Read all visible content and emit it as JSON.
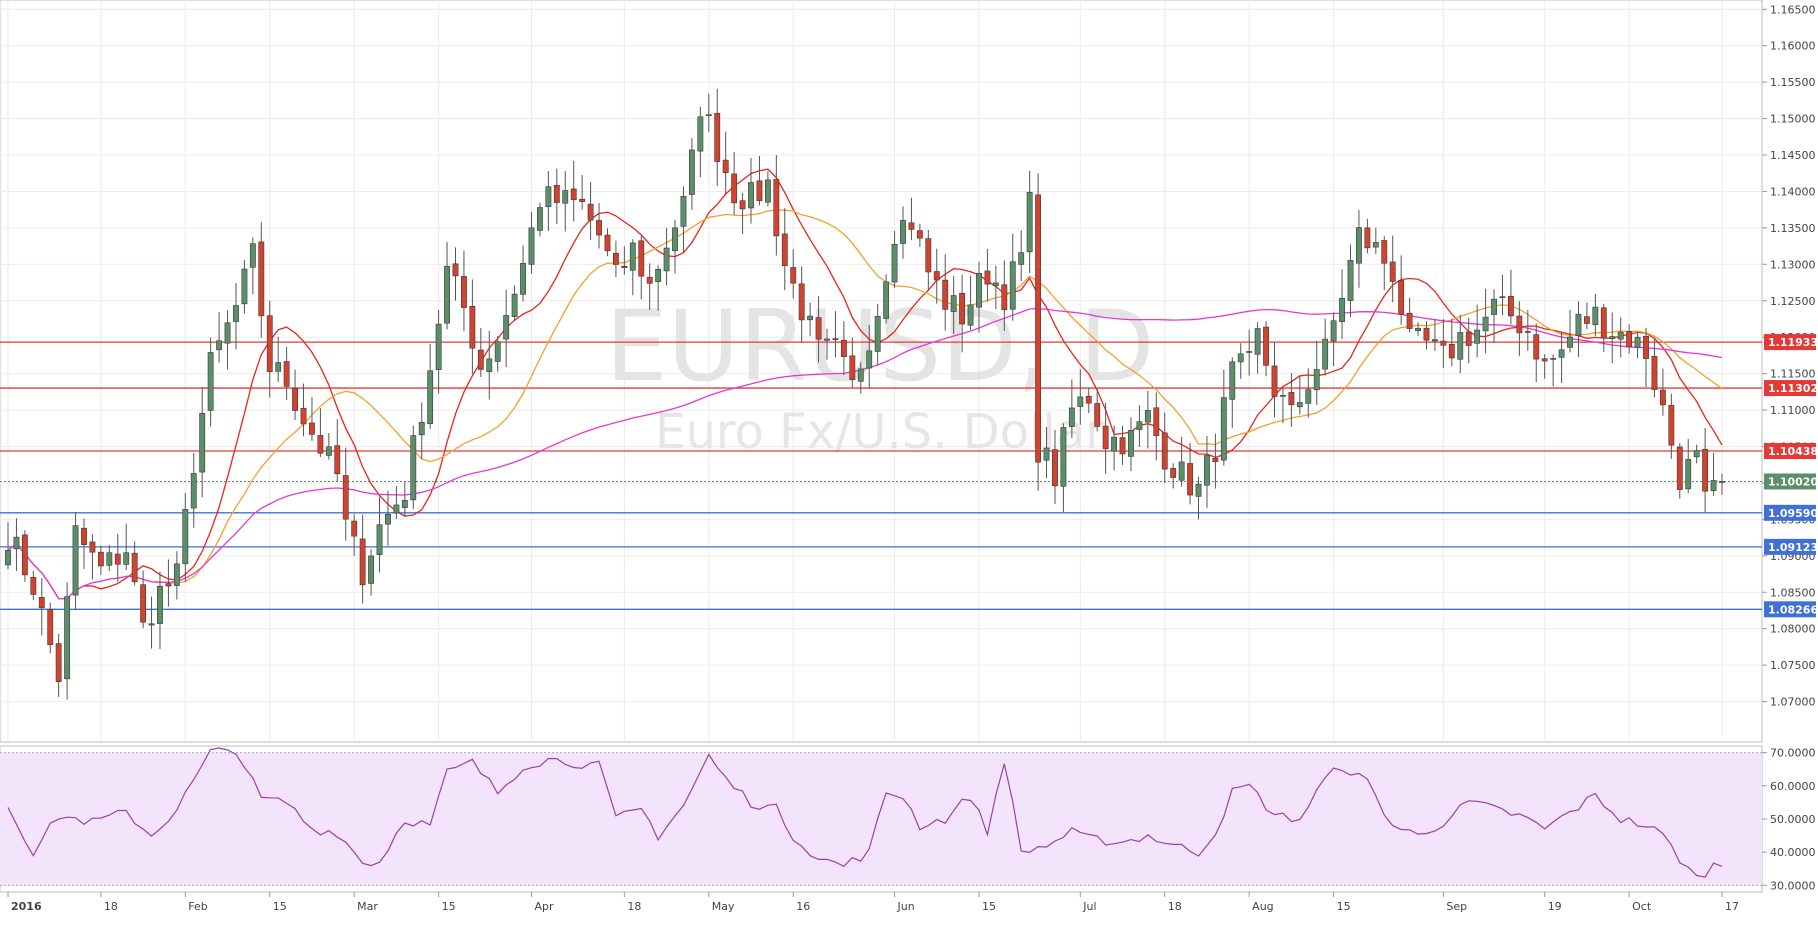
{
  "chart_data": {
    "type": "candlestick",
    "watermark": {
      "symbol": "EURUSD, D",
      "description": "Euro Fx/U.S. Dollar"
    },
    "price_axis": {
      "range": [
        1.065,
        1.166
      ],
      "ticks": [
        "1.16500",
        "1.16000",
        "1.15500",
        "1.15000",
        "1.14500",
        "1.14000",
        "1.13500",
        "1.13000",
        "1.12500",
        "1.12000",
        "1.11500",
        "1.11000",
        "1.10500",
        "1.10000",
        "1.09500",
        "1.09000",
        "1.08500",
        "1.08000",
        "1.07500",
        "1.07000"
      ]
    },
    "rsi_axis": {
      "range": [
        28,
        72
      ],
      "ticks": [
        "70.0000",
        "60.0000",
        "50.0000",
        "40.0000",
        "30.0000"
      ],
      "band": [
        30,
        70
      ]
    },
    "time_axis": [
      {
        "label": "2016",
        "bar": 0
      },
      {
        "label": "18",
        "bar": 11
      },
      {
        "label": "Feb",
        "bar": 21
      },
      {
        "label": "15",
        "bar": 31
      },
      {
        "label": "Mar",
        "bar": 41
      },
      {
        "label": "15",
        "bar": 51
      },
      {
        "label": "Apr",
        "bar": 62
      },
      {
        "label": "18",
        "bar": 73
      },
      {
        "label": "May",
        "bar": 83
      },
      {
        "label": "16",
        "bar": 93
      },
      {
        "label": "Jun",
        "bar": 105
      },
      {
        "label": "15",
        "bar": 115
      },
      {
        "label": "Jul",
        "bar": 127
      },
      {
        "label": "18",
        "bar": 137
      },
      {
        "label": "Aug",
        "bar": 147
      },
      {
        "label": "15",
        "bar": 157
      },
      {
        "label": "Sep",
        "bar": 170
      },
      {
        "label": "19",
        "bar": 182
      },
      {
        "label": "Oct",
        "bar": 192
      },
      {
        "label": "17",
        "bar": 203
      }
    ],
    "horizontal_levels": [
      {
        "price": 1.11933,
        "label": "1.11933",
        "color": "#e53935"
      },
      {
        "price": 1.11302,
        "label": "1.11302",
        "color": "#e53935"
      },
      {
        "price": 1.10438,
        "label": "1.10438",
        "color": "#e53935"
      },
      {
        "price": 1.0959,
        "label": "1.09590",
        "color": "#3f6fd8"
      },
      {
        "price": 1.09123,
        "label": "1.09123",
        "color": "#3f6fd8"
      },
      {
        "price": 1.08266,
        "label": "1.08266",
        "color": "#3f6fd8"
      }
    ],
    "last_price": {
      "price": 1.1002,
      "label": "1.10020",
      "color": "#5a8f69"
    },
    "colors": {
      "up": "#5a8f69",
      "down": "#d2432f",
      "ma_fast": "#e8261c",
      "ma_mid": "#f3a02f",
      "ma_slow": "#e23ad8",
      "rsi_line": "#9b3fb0",
      "rsi_band": "#f3e3fb"
    },
    "ma_periods": [
      10,
      20,
      100
    ],
    "keypoints": [
      [
        0,
        1.093
      ],
      [
        3,
        1.086
      ],
      [
        6,
        1.0735
      ],
      [
        8,
        1.093
      ],
      [
        11,
        1.088
      ],
      [
        14,
        1.091
      ],
      [
        16,
        1.08
      ],
      [
        18,
        1.085
      ],
      [
        20,
        1.087
      ],
      [
        22,
        1.103
      ],
      [
        24,
        1.116
      ],
      [
        27,
        1.124
      ],
      [
        29,
        1.131
      ],
      [
        31,
        1.116
      ],
      [
        33,
        1.114
      ],
      [
        35,
        1.109
      ],
      [
        37,
        1.105
      ],
      [
        39,
        1.101
      ],
      [
        40,
        1.094
      ],
      [
        42,
        1.088
      ],
      [
        44,
        1.094
      ],
      [
        47,
        1.099
      ],
      [
        50,
        1.116
      ],
      [
        52,
        1.129
      ],
      [
        54,
        1.124
      ],
      [
        56,
        1.116
      ],
      [
        58,
        1.12
      ],
      [
        61,
        1.13
      ],
      [
        63,
        1.139
      ],
      [
        66,
        1.1385
      ],
      [
        68,
        1.138
      ],
      [
        70,
        1.134
      ],
      [
        72,
        1.128
      ],
      [
        74,
        1.132
      ],
      [
        76,
        1.127
      ],
      [
        78,
        1.133
      ],
      [
        80,
        1.138
      ],
      [
        81,
        1.144
      ],
      [
        82,
        1.152
      ],
      [
        84,
        1.146
      ],
      [
        86,
        1.14
      ],
      [
        88,
        1.139
      ],
      [
        90,
        1.141
      ],
      [
        92,
        1.13
      ],
      [
        94,
        1.124
      ],
      [
        96,
        1.118
      ],
      [
        98,
        1.118
      ],
      [
        100,
        1.113
      ],
      [
        103,
        1.124
      ],
      [
        105,
        1.135
      ],
      [
        107,
        1.136
      ],
      [
        109,
        1.129
      ],
      [
        111,
        1.125
      ],
      [
        113,
        1.123
      ],
      [
        116,
        1.129
      ],
      [
        118,
        1.126
      ],
      [
        120,
        1.131
      ],
      [
        121,
        1.138
      ],
      [
        122,
        1.105
      ],
      [
        124,
        1.101
      ],
      [
        126,
        1.11
      ],
      [
        128,
        1.112
      ],
      [
        130,
        1.106
      ],
      [
        133,
        1.106
      ],
      [
        135,
        1.109
      ],
      [
        137,
        1.104
      ],
      [
        139,
        1.101
      ],
      [
        141,
        1.099
      ],
      [
        143,
        1.105
      ],
      [
        145,
        1.115
      ],
      [
        147,
        1.116
      ],
      [
        148,
        1.12
      ],
      [
        150,
        1.113
      ],
      [
        152,
        1.109
      ],
      [
        154,
        1.114
      ],
      [
        156,
        1.118
      ],
      [
        158,
        1.126
      ],
      [
        160,
        1.134
      ],
      [
        162,
        1.132
      ],
      [
        164,
        1.129
      ],
      [
        166,
        1.119
      ],
      [
        168,
        1.119
      ],
      [
        170,
        1.117
      ],
      [
        172,
        1.12
      ],
      [
        174,
        1.121
      ],
      [
        176,
        1.124
      ],
      [
        178,
        1.123
      ],
      [
        180,
        1.121
      ],
      [
        182,
        1.116
      ],
      [
        184,
        1.118
      ],
      [
        186,
        1.122
      ],
      [
        188,
        1.123
      ],
      [
        190,
        1.121
      ],
      [
        192,
        1.12
      ],
      [
        194,
        1.118
      ],
      [
        196,
        1.11
      ],
      [
        198,
        1.101
      ],
      [
        200,
        1.103
      ],
      [
        201,
        1.097
      ],
      [
        202,
        1.0985
      ],
      [
        203,
        1.1002
      ]
    ],
    "rsi_keypoints": [
      [
        0,
        54
      ],
      [
        3,
        40
      ],
      [
        6,
        51
      ],
      [
        10,
        49
      ],
      [
        14,
        52
      ],
      [
        17,
        45
      ],
      [
        20,
        53
      ],
      [
        24,
        70
      ],
      [
        27,
        71
      ],
      [
        30,
        56
      ],
      [
        33,
        55
      ],
      [
        36,
        47
      ],
      [
        39,
        46
      ],
      [
        42,
        37
      ],
      [
        44,
        37
      ],
      [
        47,
        50
      ],
      [
        50,
        48
      ],
      [
        52,
        64
      ],
      [
        55,
        67
      ],
      [
        58,
        58
      ],
      [
        61,
        66
      ],
      [
        64,
        68
      ],
      [
        67,
        67
      ],
      [
        70,
        66
      ],
      [
        72,
        50
      ],
      [
        75,
        53
      ],
      [
        77,
        45
      ],
      [
        80,
        54
      ],
      [
        83,
        69
      ],
      [
        85,
        62
      ],
      [
        88,
        55
      ],
      [
        91,
        53
      ],
      [
        93,
        45
      ],
      [
        96,
        38
      ],
      [
        99,
        36
      ],
      [
        102,
        40
      ],
      [
        104,
        58
      ],
      [
        106,
        57
      ],
      [
        108,
        48
      ],
      [
        111,
        50
      ],
      [
        114,
        57
      ],
      [
        116,
        46
      ],
      [
        118,
        68
      ],
      [
        120,
        40
      ],
      [
        123,
        42
      ],
      [
        126,
        46
      ],
      [
        128,
        44
      ],
      [
        132,
        43
      ],
      [
        135,
        45
      ],
      [
        138,
        42
      ],
      [
        141,
        40
      ],
      [
        143,
        46
      ],
      [
        145,
        58
      ],
      [
        147,
        60
      ],
      [
        150,
        51
      ],
      [
        153,
        50
      ],
      [
        156,
        62
      ],
      [
        158,
        66
      ],
      [
        161,
        61
      ],
      [
        164,
        48
      ],
      [
        167,
        45
      ],
      [
        170,
        49
      ],
      [
        173,
        55
      ],
      [
        176,
        53
      ],
      [
        179,
        51
      ],
      [
        182,
        47
      ],
      [
        185,
        52
      ],
      [
        188,
        57
      ],
      [
        191,
        50
      ],
      [
        194,
        48
      ],
      [
        196,
        45
      ],
      [
        198,
        38
      ],
      [
        200,
        32
      ],
      [
        202,
        36
      ],
      [
        203,
        36
      ]
    ],
    "bars_total": 204
  }
}
